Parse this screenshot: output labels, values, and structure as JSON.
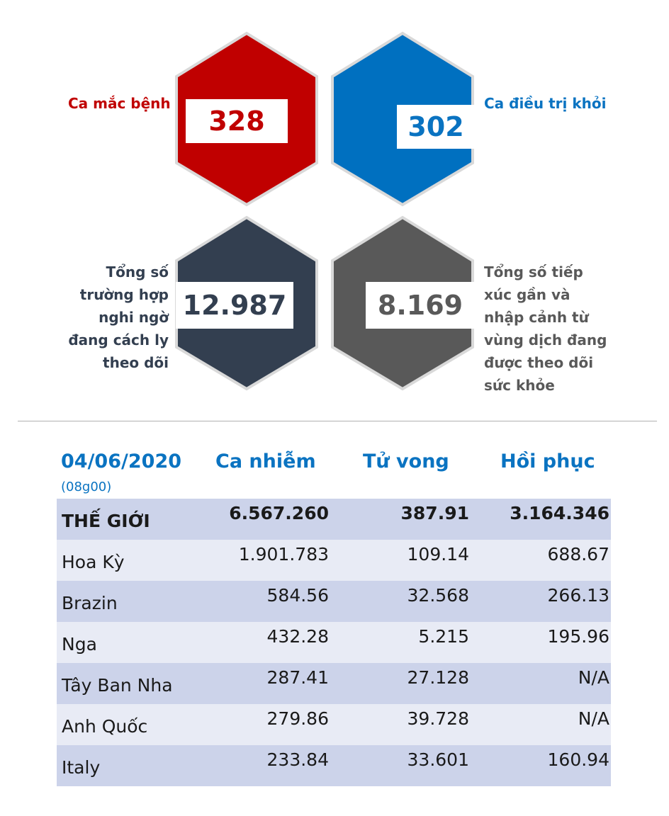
{
  "stats": {
    "cases": {
      "label": "Ca mắc bệnh",
      "value": "328",
      "color": "#c00000"
    },
    "recovered": {
      "label": "Ca điều trị khỏi",
      "value": "302",
      "color": "#0070c0"
    },
    "quarantine": {
      "label_lines": [
        "Tổng số",
        "trường hợp",
        "nghi ngờ",
        "đang cách ly",
        "theo dõi"
      ],
      "value": "12.987",
      "color": "#333f50"
    },
    "monitoring": {
      "label_lines": [
        "Tổng số tiếp",
        "xúc gần và",
        "nhập cảnh từ",
        "vùng dịch đang",
        "được theo dõi",
        "sức khỏe"
      ],
      "value": "8.169",
      "color": "#595959"
    }
  },
  "table": {
    "date": "04/06/2020",
    "time": "(08g00)",
    "headers": [
      "Ca nhiễm",
      "Tử vong",
      "Hồi phục"
    ],
    "rows": [
      [
        "THẾ GIỚI",
        "6.567.260",
        "387.91",
        "3.164.346"
      ],
      [
        "Hoa Kỳ",
        "1.901.783",
        "109.14",
        "688.67"
      ],
      [
        "Brazin",
        "584.56",
        "32.568",
        "266.13"
      ],
      [
        "Nga",
        "432.28",
        "5.215",
        "195.96"
      ],
      [
        "Tây Ban Nha",
        "287.41",
        "27.128",
        "N/A"
      ],
      [
        "Anh Quốc",
        "279.86",
        "39.728",
        "N/A"
      ],
      [
        "Italy",
        "233.84",
        "33.601",
        "160.94"
      ]
    ],
    "row_colors": [
      "#ccd3ea",
      "#e8ebf5"
    ]
  }
}
